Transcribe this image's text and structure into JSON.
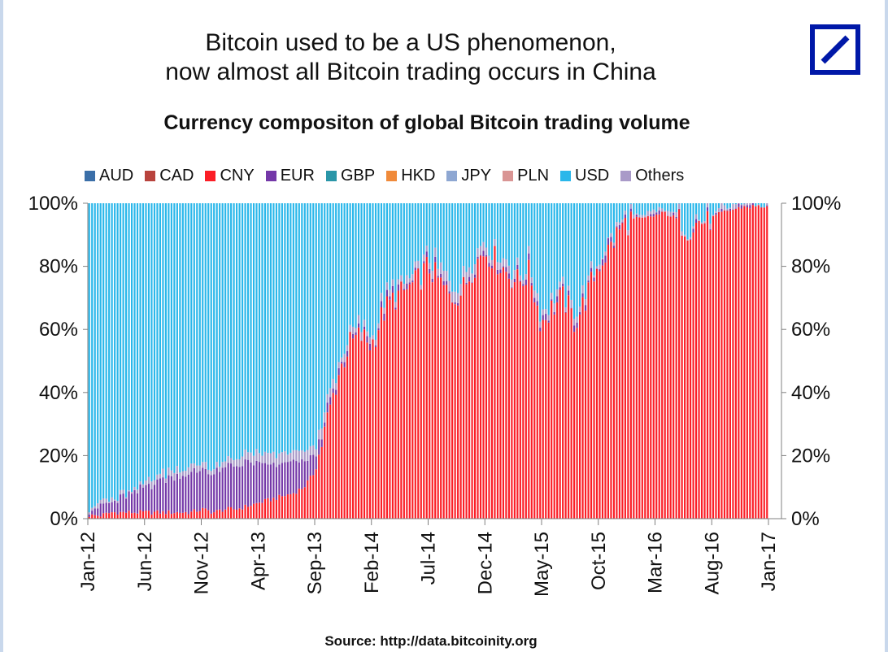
{
  "headline": {
    "line1": "Bitcoin used to be a US phenomenon,",
    "line2": "now almost all Bitcoin trading occurs in China"
  },
  "source": "Source: http://data.bitcoinity.org",
  "logo_icon": "deutsche-bank-logo-icon",
  "chart_data": {
    "type": "bar",
    "stacked": true,
    "title": "Currency compositon of global Bitcoin trading volume",
    "xlabel": "",
    "ylabel": "",
    "ylim": [
      0,
      100
    ],
    "y_ticks": [
      "0%",
      "20%",
      "40%",
      "60%",
      "80%",
      "100%"
    ],
    "y_tick_values": [
      0,
      20,
      40,
      60,
      80,
      100
    ],
    "x_tick_labels": [
      "Jan-12",
      "Jun-12",
      "Nov-12",
      "Apr-13",
      "Sep-13",
      "Feb-14",
      "Jul-14",
      "Dec-14",
      "May-15",
      "Oct-15",
      "Mar-16",
      "Aug-16",
      "Jan-17"
    ],
    "legend_position": "top",
    "series": [
      {
        "name": "AUD",
        "color": "#3b6fa8"
      },
      {
        "name": "CAD",
        "color": "#b8433d"
      },
      {
        "name": "CNY",
        "color": "#fb1e26"
      },
      {
        "name": "EUR",
        "color": "#7438a8"
      },
      {
        "name": "GBP",
        "color": "#2a96a8"
      },
      {
        "name": "HKD",
        "color": "#f08a3a"
      },
      {
        "name": "JPY",
        "color": "#8ea7d2"
      },
      {
        "name": "PLN",
        "color": "#d99594"
      },
      {
        "name": "USD",
        "color": "#2ab7ea"
      },
      {
        "name": "Others",
        "color": "#a99ac8"
      }
    ],
    "periods": [
      "Jan-12",
      "Feb-12",
      "Mar-12",
      "Apr-12",
      "May-12",
      "Jun-12",
      "Jul-12",
      "Aug-12",
      "Sep-12",
      "Oct-12",
      "Nov-12",
      "Dec-12",
      "Jan-13",
      "Feb-13",
      "Mar-13",
      "Apr-13",
      "May-13",
      "Jun-13",
      "Jul-13",
      "Aug-13",
      "Sep-13",
      "Oct-13",
      "Nov-13",
      "Dec-13",
      "Jan-14",
      "Feb-14",
      "Mar-14",
      "Apr-14",
      "May-14",
      "Jun-14",
      "Jul-14",
      "Aug-14",
      "Sep-14",
      "Oct-14",
      "Nov-14",
      "Dec-14",
      "Jan-15",
      "Feb-15",
      "Mar-15",
      "Apr-15",
      "May-15",
      "Jun-15",
      "Jul-15",
      "Aug-15",
      "Sep-15",
      "Oct-15",
      "Nov-15",
      "Dec-15",
      "Jan-16",
      "Feb-16",
      "Mar-16",
      "Apr-16",
      "May-16",
      "Jun-16",
      "Jul-16",
      "Aug-16",
      "Sep-16",
      "Oct-16",
      "Nov-16",
      "Dec-16",
      "Jan-17"
    ],
    "cny_share": [
      1,
      1,
      2,
      2,
      2,
      2,
      2,
      2,
      2,
      2,
      3,
      2,
      3,
      3,
      4,
      5,
      6,
      7,
      8,
      10,
      15,
      30,
      45,
      55,
      58,
      55,
      65,
      70,
      72,
      75,
      80,
      75,
      70,
      72,
      80,
      85,
      82,
      78,
      75,
      78,
      62,
      67,
      70,
      62,
      70,
      80,
      85,
      92,
      95,
      95,
      96,
      97,
      95,
      92,
      94,
      95,
      97,
      98,
      99,
      99,
      99
    ],
    "eur_share": [
      2,
      3,
      3,
      5,
      6,
      8,
      10,
      11,
      12,
      12,
      13,
      12,
      13,
      14,
      14,
      12,
      11,
      10,
      10,
      8,
      5,
      2,
      1,
      1,
      1,
      1,
      1,
      1,
      1,
      1,
      1,
      1,
      1,
      1,
      1,
      1,
      1,
      1,
      1,
      1,
      1,
      1,
      1,
      1,
      1,
      1,
      1,
      1,
      0,
      0,
      0,
      0,
      0,
      0,
      0,
      0,
      0,
      0,
      0,
      0,
      0
    ],
    "other_share": [
      1,
      1,
      1,
      1,
      1,
      2,
      2,
      2,
      2,
      2,
      2,
      2,
      2,
      2,
      3,
      3,
      3,
      3,
      3,
      3,
      3,
      3,
      2,
      2,
      2,
      2,
      2,
      2,
      2,
      2,
      2,
      3,
      3,
      3,
      3,
      2,
      2,
      2,
      2,
      2,
      2,
      2,
      2,
      2,
      2,
      1,
      1,
      1,
      1,
      1,
      1,
      1,
      1,
      1,
      1,
      1,
      1,
      1,
      0,
      0,
      0
    ],
    "usd_share": [
      96,
      95,
      94,
      92,
      91,
      88,
      86,
      85,
      84,
      84,
      82,
      84,
      82,
      81,
      79,
      80,
      80,
      80,
      79,
      79,
      77,
      65,
      52,
      42,
      39,
      42,
      32,
      27,
      25,
      22,
      17,
      21,
      26,
      24,
      16,
      12,
      15,
      19,
      22,
      19,
      35,
      30,
      27,
      35,
      27,
      18,
      13,
      6,
      4,
      4,
      3,
      2,
      4,
      7,
      5,
      4,
      2,
      1,
      1,
      1,
      1
    ]
  }
}
